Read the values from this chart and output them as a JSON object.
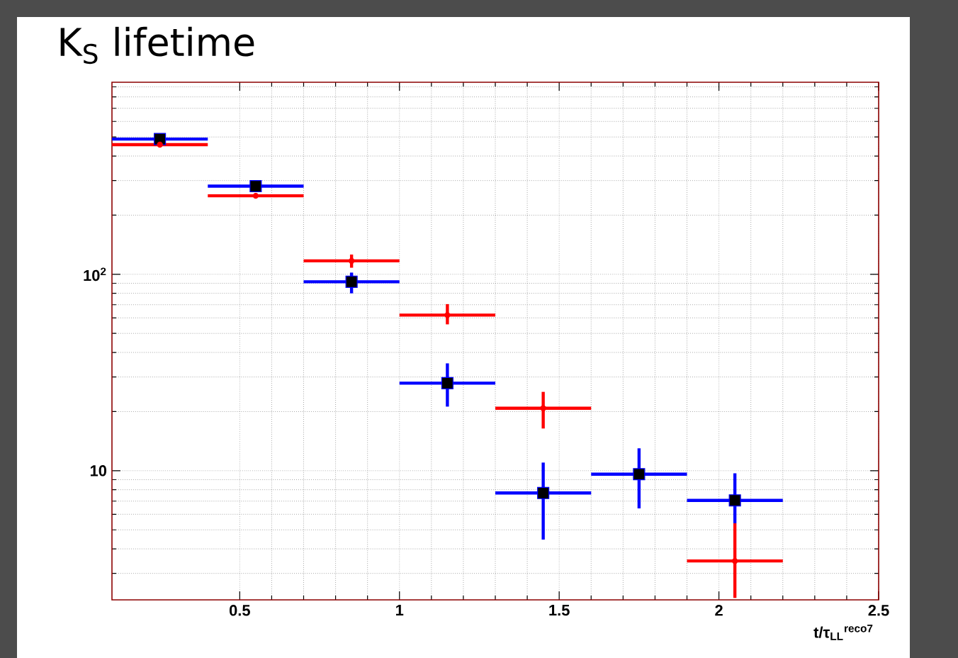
{
  "chart_data": {
    "type": "scatter",
    "title": "K$_{S}$ lifetime",
    "xlabel": "t/τ$_{LL}$$^{reco7}$",
    "x": [
      0.25,
      0.55,
      0.85,
      1.15,
      1.45,
      1.75,
      2.05
    ],
    "series": [
      {
        "color": "#0000ff",
        "marker": "square",
        "values": [
          488,
          281,
          91.6,
          27.9,
          7.7,
          9.6,
          7.06
        ],
        "errors": [
          null,
          null,
          [
            80,
            102
          ],
          [
            21.2,
            35.2
          ],
          [
            4.46,
            11.0
          ],
          [
            6.43,
            13.0
          ],
          [
            5.4,
            9.7
          ]
        ],
        "xerrors": [
          0.15,
          0.15,
          0.15,
          0.15,
          0.15,
          0.15,
          0.15
        ]
      },
      {
        "color": "#ff0000",
        "marker": "circle",
        "values": [
          457,
          251,
          117,
          62,
          20.8,
          null,
          3.47
        ],
        "errors": [
          null,
          null,
          [
            108,
            126
          ],
          [
            55.6,
            70.5
          ],
          [
            16.4,
            25.2
          ],
          null,
          [
            2.25,
            5.4
          ]
        ],
        "xerrors": [
          0.15,
          0.15,
          0.15,
          0.15,
          0.15,
          null,
          0.15
        ]
      }
    ],
    "xlim": [
      0.1,
      2.5
    ],
    "ylim": [
      2.2,
      950
    ],
    "xticks": [
      0.5,
      1,
      1.5,
      2,
      2.5
    ],
    "yticks": [
      10,
      {
        "value": 100,
        "label": "10$^{2}$"
      }
    ],
    "log": "y",
    "grid": true
  }
}
